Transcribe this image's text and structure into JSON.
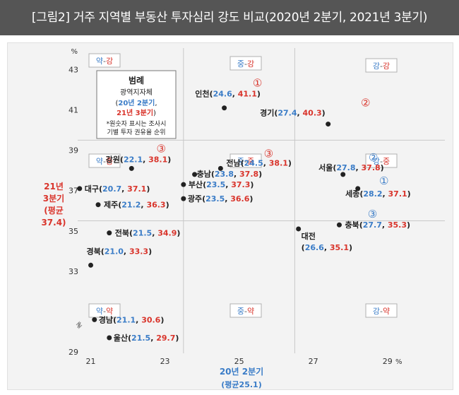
{
  "title": "[그림2] 거주 지역별 부동산 투자심리 강도 비교(2020년 2분기, 2021년 3분기)",
  "chart_data": {
    "type": "scatter",
    "xlim": [
      20.8,
      29.5
    ],
    "ylim": [
      29,
      44
    ],
    "x_ticks": [
      "21",
      "23",
      "25",
      "27",
      "29"
    ],
    "y_ticks": [
      "29",
      "33",
      "35",
      "37",
      "39",
      "41",
      "43"
    ],
    "x_tick_values": [
      21,
      23,
      25,
      27,
      29
    ],
    "y_tick_values": [
      29,
      33,
      35,
      37,
      39,
      41,
      43
    ],
    "x_unit": "%",
    "y_unit": "%",
    "xlabel_line1": "20년 2분기",
    "xlabel_line2": "(평균25.1)",
    "ylabel_lines": [
      "21년",
      "3분기",
      "(평균",
      "37.4)"
    ],
    "x_divisions": [
      23.5,
      26.5
    ],
    "y_divisions": [
      35.5,
      39.5
    ],
    "legend": {
      "title": "범례",
      "line1": "광역지자체",
      "line2_a": "(",
      "line2_b": "20년 2분기",
      "line2_c": ",",
      "line3_b": "21년 3분기",
      "line3_c": ")",
      "note1": "*원숫자 표시는 조사시",
      "note2": "기별 투자 권유율 순위"
    },
    "zones": [
      {
        "a": "약",
        "sep": "-",
        "b": "강",
        "a_color": "#3a7cc7",
        "b_color": "#d9342b"
      },
      {
        "a": "중",
        "sep": "-",
        "b": "강",
        "a_color": "#3a7cc7",
        "b_color": "#d9342b"
      },
      {
        "a": "강",
        "sep": "-",
        "b": "강",
        "a_color": "#3a7cc7",
        "b_color": "#d9342b"
      },
      {
        "a": "약",
        "sep": "-",
        "b": "중",
        "a_color": "#3a7cc7",
        "b_color": "#d9342b"
      },
      {
        "a": "중",
        "sep": "-",
        "b": "중",
        "a_color": "#3a7cc7",
        "b_color": "#d9342b"
      },
      {
        "a": "강",
        "sep": "-",
        "b": "중",
        "a_color": "#3a7cc7",
        "b_color": "#d9342b"
      },
      {
        "a": "약",
        "sep": "-",
        "b": "약",
        "a_color": "#3a7cc7",
        "b_color": "#d9342b"
      },
      {
        "a": "중",
        "sep": "-",
        "b": "약",
        "a_color": "#3a7cc7",
        "b_color": "#d9342b"
      },
      {
        "a": "강",
        "sep": "-",
        "b": "약",
        "a_color": "#3a7cc7",
        "b_color": "#d9342b"
      }
    ],
    "points": [
      {
        "name": "인천",
        "x": 24.6,
        "y": 41.1,
        "x_text": "24.6",
        "y_text": "41.1",
        "rank": "①",
        "rank_color": "#d9342b"
      },
      {
        "name": "경기",
        "x": 27.4,
        "y": 40.3,
        "x_text": "27.4",
        "y_text": "40.3",
        "rank": "②",
        "rank_color": "#d9342b"
      },
      {
        "name": "강원",
        "x": 22.1,
        "y": 38.1,
        "x_text": "22.1",
        "y_text": "38.1",
        "rank": "③",
        "rank_color": "#d9342b"
      },
      {
        "name": "전남",
        "x": 24.5,
        "y": 38.1,
        "x_text": "24.5",
        "y_text": "38.1",
        "rank": "③",
        "rank_color": "#d9342b"
      },
      {
        "name": "충남",
        "x": 23.8,
        "y": 37.8,
        "x_text": "23.8",
        "y_text": "37.8",
        "rank": "",
        "rank_color": ""
      },
      {
        "name": "부산",
        "x": 23.5,
        "y": 37.3,
        "x_text": "23.5",
        "y_text": "37.3",
        "rank": "",
        "rank_color": ""
      },
      {
        "name": "광주",
        "x": 23.5,
        "y": 36.6,
        "x_text": "23.5",
        "y_text": "36.6",
        "rank": "",
        "rank_color": ""
      },
      {
        "name": "대구",
        "x": 20.7,
        "y": 37.1,
        "x_text": "20.7",
        "y_text": "37.1",
        "rank": "",
        "rank_color": ""
      },
      {
        "name": "제주",
        "x": 21.2,
        "y": 36.3,
        "x_text": "21.2",
        "y_text": "36.3",
        "rank": "",
        "rank_color": ""
      },
      {
        "name": "서울",
        "x": 27.8,
        "y": 37.8,
        "x_text": "27.8",
        "y_text": "37.8",
        "rank": "②",
        "rank_color": "#3a7cc7"
      },
      {
        "name": "세종",
        "x": 28.2,
        "y": 37.1,
        "x_text": "28.2",
        "y_text": "37.1",
        "rank": "①",
        "rank_color": "#3a7cc7"
      },
      {
        "name": "충북",
        "x": 27.7,
        "y": 35.3,
        "x_text": "27.7",
        "y_text": "35.3",
        "rank": "③",
        "rank_color": "#3a7cc7"
      },
      {
        "name": "대전",
        "x": 26.6,
        "y": 35.1,
        "x_text": "26.6",
        "y_text": "35.1",
        "rank": "",
        "rank_color": ""
      },
      {
        "name": "전북",
        "x": 21.5,
        "y": 34.9,
        "x_text": "21.5",
        "y_text": "34.9",
        "rank": "",
        "rank_color": ""
      },
      {
        "name": "경북",
        "x": 21.0,
        "y": 33.3,
        "x_text": "21.0",
        "y_text": "33.3",
        "rank": "",
        "rank_color": ""
      },
      {
        "name": "경남",
        "x": 21.1,
        "y": 30.6,
        "x_text": "21.1",
        "y_text": "30.6",
        "rank": "",
        "rank_color": ""
      },
      {
        "name": "울산",
        "x": 21.5,
        "y": 29.7,
        "x_text": "21.5",
        "y_text": "29.7",
        "rank": "",
        "rank_color": ""
      }
    ],
    "colors": {
      "x_value": "#3a7cc7",
      "y_value": "#d9342b",
      "label": "#222222",
      "axis_title_x": "#3a7cc7",
      "axis_title_y": "#d9342b",
      "title_bg": "#555555",
      "panel_bg": "#f3f3f3",
      "grid": "#c8c8c8"
    }
  }
}
